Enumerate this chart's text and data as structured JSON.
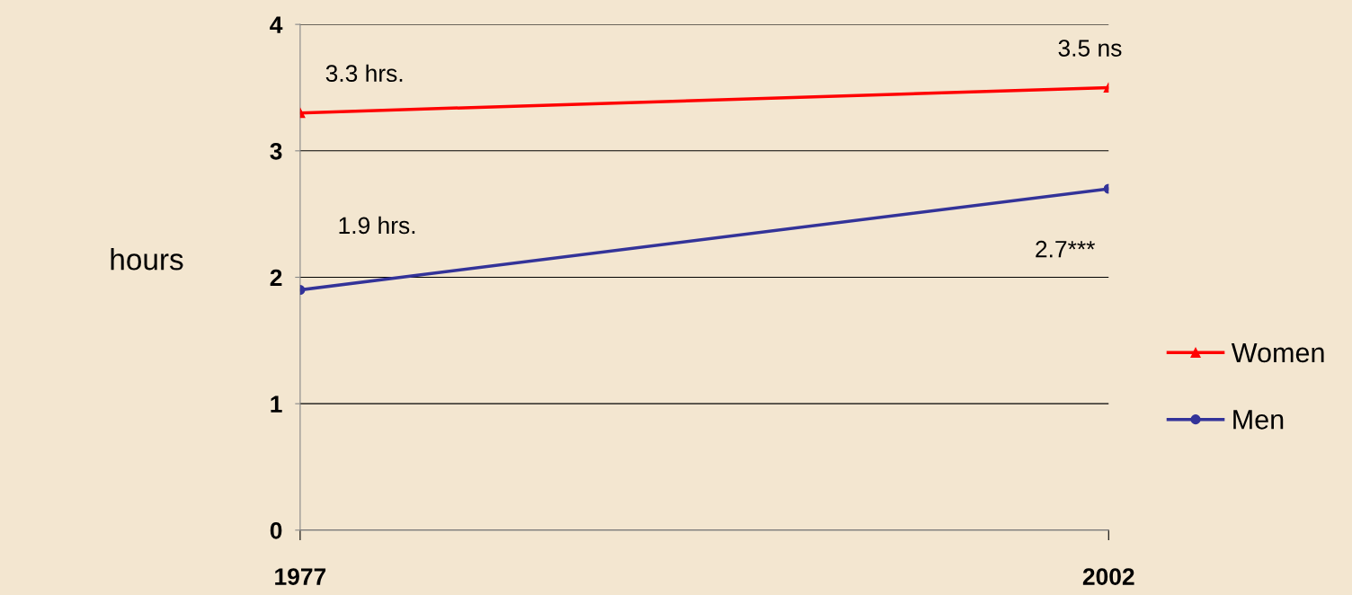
{
  "chart_data": {
    "type": "line",
    "ylabel": "hours",
    "x": [
      1977,
      2002
    ],
    "series": [
      {
        "name": "Women",
        "color": "#ff0000",
        "values": [
          3.3,
          3.5
        ],
        "marker": "triangle",
        "value_labels": [
          "3.3 hrs.",
          "3.5 ns"
        ]
      },
      {
        "name": "Men",
        "color": "#333399",
        "values": [
          1.9,
          2.7
        ],
        "marker": "circle",
        "value_labels": [
          "1.9 hrs.",
          "2.7***"
        ]
      }
    ],
    "xlim": [
      1977,
      2002
    ],
    "xticks": [
      1977,
      2002
    ],
    "ylim": [
      0,
      4
    ],
    "yticks": [
      0,
      1,
      2,
      3,
      4
    ],
    "grid": "y",
    "legend": "right",
    "line_style": "solid"
  }
}
